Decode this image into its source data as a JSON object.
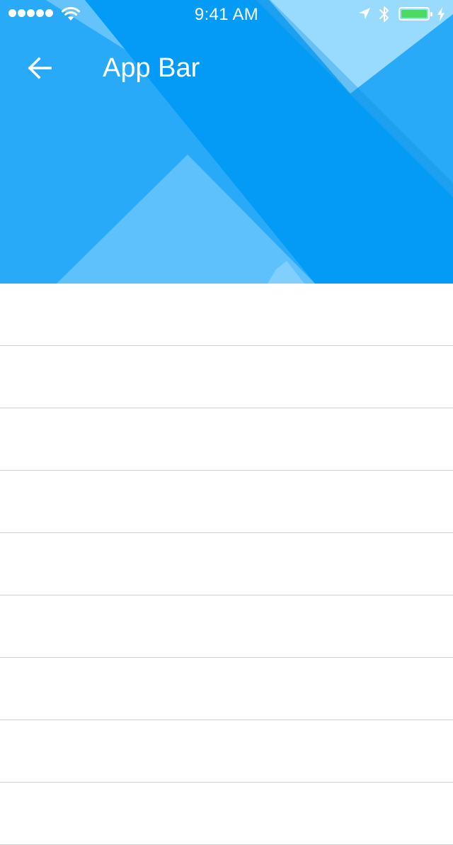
{
  "status_bar": {
    "time": "9:41 AM",
    "signal_bars": 5,
    "battery_level_percent": 100,
    "battery_color": "#4cd964",
    "icons": [
      "signal-dots",
      "wifi-icon",
      "location-arrow-icon",
      "bluetooth-icon",
      "battery-icon",
      "charging-bolt-icon"
    ]
  },
  "app_bar": {
    "title": "App Bar",
    "back_icon": "arrow-left-icon",
    "colors": {
      "base": "#29aaf8",
      "band": "#039bf6",
      "light": "#99dbfe",
      "mid": "#5fc1fb"
    }
  },
  "list": {
    "item_count": 9
  }
}
